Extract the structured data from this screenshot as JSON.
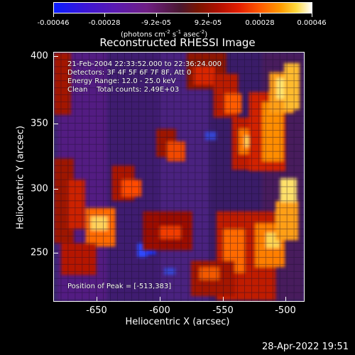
{
  "colorbar": {
    "ticks": [
      "-0.00046",
      "-0.00028",
      "-9.2e-05",
      "9.2e-05",
      "0.00028",
      "0.00046"
    ],
    "units": {
      "prefix": "(photons cm",
      "sup1": "-2",
      "mid1": " s",
      "sup2": "-1",
      "mid2": " asec",
      "sup3": "-2",
      "suffix": ")"
    }
  },
  "plot": {
    "title": "Reconstructed RHESSI Image",
    "overlay_text": "21-Feb-2004 22:33:52.000 to 22:36:24.000\nDetectors: 3F 4F 5F 6F 7F 8F, Att 0\nEnergy Range: 12.0 - 25.0 keV\nClean    Total counts: 2.49E+03",
    "peak_text": "Position of Peak = [-513,383]",
    "x_axis_label": "Heliocentric X (arcsec)",
    "y_axis_label": "Heliocentric Y (arcsec)",
    "x_ticks": [
      "-650",
      "-600",
      "-550",
      "-500"
    ],
    "y_ticks": [
      "400",
      "350",
      "300",
      "250"
    ]
  },
  "footer": {
    "timestamp": "28-Apr-2022 19:51"
  },
  "colors": {
    "background": "#000000",
    "text": "#ffffff",
    "low": "#0a1cff",
    "mid": "#6f1f84",
    "high": "#ffffff",
    "hot": "#ff7a00"
  }
}
